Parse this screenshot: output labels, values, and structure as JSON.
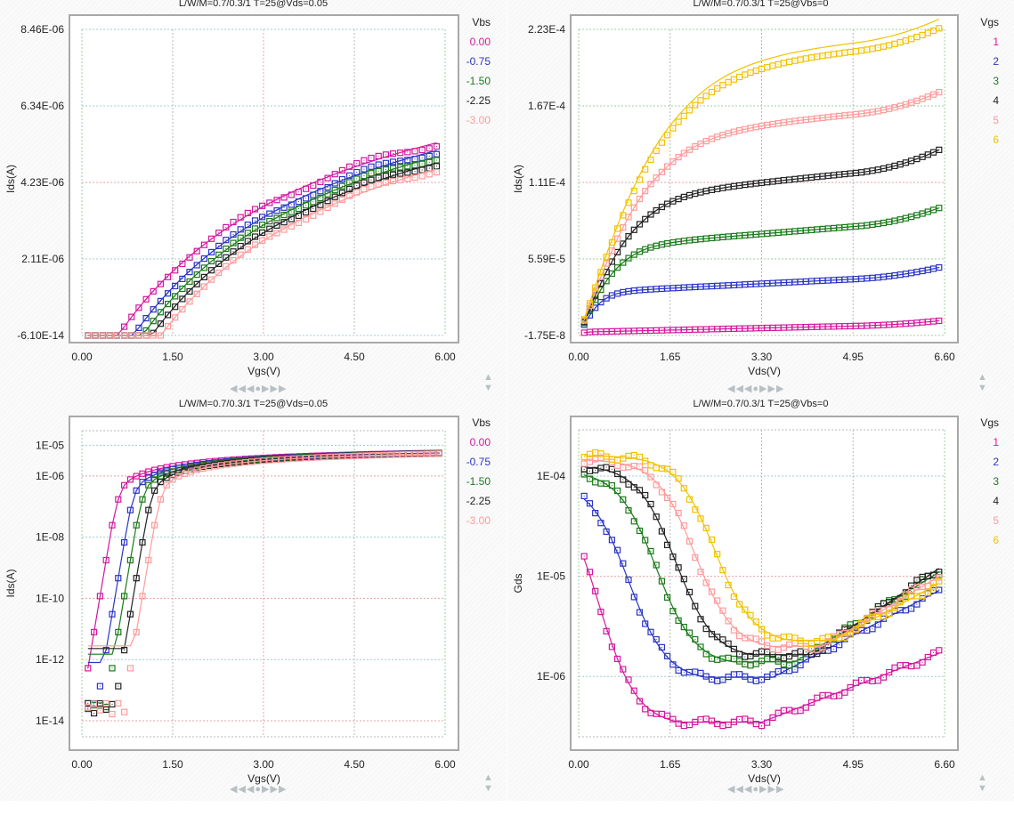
{
  "colors": {
    "magenta": "#d4189e",
    "blue": "#2b35c4",
    "green": "#1a7a1a",
    "black": "#222222",
    "pink": "#ff9a9a",
    "yellow": "#f2c200",
    "frame": "#a8a8a8",
    "nav": "#b8c0c4"
  },
  "nav": {
    "first": "◀◀",
    "prev": "◀",
    "home": "●",
    "next": "▶",
    "last": "▶▶",
    "up": "▲",
    "down": "▼"
  },
  "chart_data": [
    {
      "id": "tl",
      "type": "scatter",
      "title": "L/W/M=0.7/0.3/1   T=25@Vds=0.05",
      "xlabel": "Vgs(V)",
      "ylabel": "Ids(A)",
      "xlim": [
        0,
        6
      ],
      "ylim": [
        -6.1e-14,
        8.46e-06
      ],
      "yscale": "linear",
      "xticks": [
        "0.00",
        "1.50",
        "3.00",
        "4.50",
        "6.00"
      ],
      "yticks": [
        "-6.10E-14",
        "2.11E-06",
        "4.23E-06",
        "6.34E-06",
        "8.46E-06"
      ],
      "legend_title": "Vbs",
      "legend_position": "right",
      "grid": true,
      "series": [
        {
          "name": "0.00",
          "color": "magenta",
          "vth": 0.6,
          "k": 2.45e-06,
          "sat": 0.27
        },
        {
          "name": "-0.75",
          "color": "blue",
          "vth": 0.85,
          "k": 2.4e-06,
          "sat": 0.27
        },
        {
          "name": "-1.50",
          "color": "green",
          "vth": 1.0,
          "k": 2.35e-06,
          "sat": 0.27
        },
        {
          "name": "-2.25",
          "color": "black",
          "vth": 1.15,
          "k": 2.3e-06,
          "sat": 0.27
        },
        {
          "name": "-3.00",
          "color": "pink",
          "vth": 1.3,
          "k": 2.25e-06,
          "sat": 0.27
        }
      ]
    },
    {
      "id": "tr",
      "type": "scatter",
      "title": "L/W/M=0.7/0.3/1   T=25@Vbs=0",
      "xlabel": "Vds(V)",
      "ylabel": "Ids(A)",
      "xlim": [
        0,
        6.6
      ],
      "ylim": [
        -1.75e-08,
        0.000223
      ],
      "yscale": "linear",
      "xticks": [
        "0.00",
        "1.65",
        "3.30",
        "4.95",
        "6.60"
      ],
      "yticks": [
        "-1.75E-8",
        "5.59E-5",
        "1.11E-4",
        "1.67E-4",
        "2.23E-4"
      ],
      "legend_title": "Vgs",
      "legend_position": "right",
      "grid": true,
      "series": [
        {
          "name": "1",
          "color": "magenta",
          "isat": 2.5e-06,
          "vdsat": 0.1,
          "slope": 9e-07
        },
        {
          "name": "2",
          "color": "blue",
          "isat": 3.2e-05,
          "vdsat": 0.45,
          "slope": 2e-06
        },
        {
          "name": "3",
          "color": "green",
          "isat": 6.6e-05,
          "vdsat": 0.8,
          "slope": 3.2e-06
        },
        {
          "name": "4",
          "color": "black",
          "isat": 0.000103,
          "vdsat": 1.15,
          "slope": 4e-06
        },
        {
          "name": "5",
          "color": "pink",
          "isat": 0.000148,
          "vdsat": 1.5,
          "slope": 3.8e-06
        },
        {
          "name": "6",
          "color": "yellow",
          "isat": 0.000196,
          "vdsat": 1.85,
          "slope": 3.8e-06
        }
      ]
    },
    {
      "id": "bl",
      "type": "scatter",
      "title": "L/W/M=0.7/0.3/1   T=25@Vds=0.05",
      "xlabel": "Vgs(V)",
      "ylabel": "Ids(A)",
      "xlim": [
        0,
        6
      ],
      "ylim": [
        3e-15,
        3e-05
      ],
      "yscale": "log",
      "xticks": [
        "0.00",
        "1.50",
        "3.00",
        "4.50",
        "6.00"
      ],
      "yticks": [
        {
          "label": "1E-05",
          "value": 1e-05
        },
        {
          "label": "1E-06",
          "value": 1e-06
        },
        {
          "label": "1E-08",
          "value": 1e-08
        },
        {
          "label": "1E-10",
          "value": 1e-10
        },
        {
          "label": "1E-12",
          "value": 1e-12
        },
        {
          "label": "1E-14",
          "value": 1e-14
        }
      ],
      "legend_title": "Vbs",
      "legend_position": "right",
      "grid": true,
      "series": [
        {
          "name": "0.00",
          "color": "magenta",
          "vth": 0.6,
          "floor": 1e-13
        },
        {
          "name": "-0.75",
          "color": "blue",
          "vth": 0.85,
          "floor": 8e-13
        },
        {
          "name": "-1.50",
          "color": "green",
          "vth": 1.0,
          "floor": 1.5e-12
        },
        {
          "name": "-2.25",
          "color": "black",
          "vth": 1.15,
          "floor": 2.3e-12
        },
        {
          "name": "-3.00",
          "color": "pink",
          "vth": 1.3,
          "floor": 2.8e-12
        }
      ]
    },
    {
      "id": "br",
      "type": "scatter",
      "title": "L/W/M=0.7/0.3/1   T=25@Vbs=0",
      "xlabel": "Vds(V)",
      "ylabel": "Gds",
      "xlim": [
        0,
        6.6
      ],
      "ylim": [
        2.5e-07,
        0.00029
      ],
      "yscale": "log",
      "xticks": [
        "0.00",
        "1.65",
        "3.30",
        "4.95",
        "6.60"
      ],
      "yticks": [
        {
          "label": "1E-04",
          "value": 0.0001
        },
        {
          "label": "1E-05",
          "value": 1e-05
        },
        {
          "label": "1E-06",
          "value": 1e-06
        }
      ],
      "legend_title": "Vgs",
      "legend_position": "right",
      "grid": true,
      "series": [
        {
          "name": "1",
          "color": "magenta",
          "g0": 2.1e-05,
          "gmin": 3.5e-07,
          "xmin": 3.3,
          "gend": 1.7e-06,
          "knee": 0.35
        },
        {
          "name": "2",
          "color": "blue",
          "g0": 6.5e-05,
          "gmin": 9.8e-07,
          "xmin": 3.5,
          "gend": 7.2e-06,
          "knee": 0.9
        },
        {
          "name": "3",
          "color": "green",
          "g0": 0.000105,
          "gmin": 1.4e-06,
          "xmin": 3.9,
          "gend": 1.1e-05,
          "knee": 1.4
        },
        {
          "name": "4",
          "color": "black",
          "g0": 0.000125,
          "gmin": 1.65e-06,
          "xmin": 4.2,
          "gend": 1.2e-05,
          "knee": 1.75
        },
        {
          "name": "5",
          "color": "pink",
          "g0": 0.000145,
          "gmin": 2e-06,
          "xmin": 4.4,
          "gend": 1e-05,
          "knee": 2.1
        },
        {
          "name": "6",
          "color": "yellow",
          "g0": 0.00016,
          "gmin": 2.3e-06,
          "xmin": 4.6,
          "gend": 8.5e-06,
          "knee": 2.45
        }
      ]
    }
  ]
}
